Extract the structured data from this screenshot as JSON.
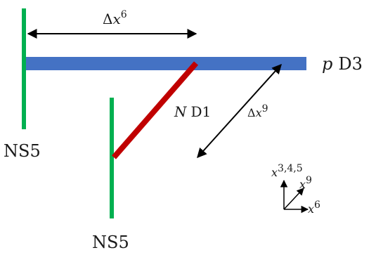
{
  "labels": {
    "delta_x6": {
      "prefix": "Δ",
      "var": "x",
      "sup": "6"
    },
    "delta_x9": {
      "prefix": "Δ",
      "var": "x",
      "sup": "9"
    },
    "d3": {
      "var": "p",
      "name": "D3"
    },
    "d1": {
      "var": "N",
      "name": "D1"
    },
    "ns5_left": "NS5",
    "ns5_right": "NS5",
    "axis_x345": {
      "var": "x",
      "sup": "3,4,5"
    },
    "axis_x9": {
      "var": "x",
      "sup": "9"
    },
    "axis_x6": {
      "var": "x",
      "sup": "6"
    }
  },
  "colors": {
    "ns5": "#00b050",
    "d3": "#4472c4",
    "d1": "#c00000",
    "arrows": "#000000"
  }
}
